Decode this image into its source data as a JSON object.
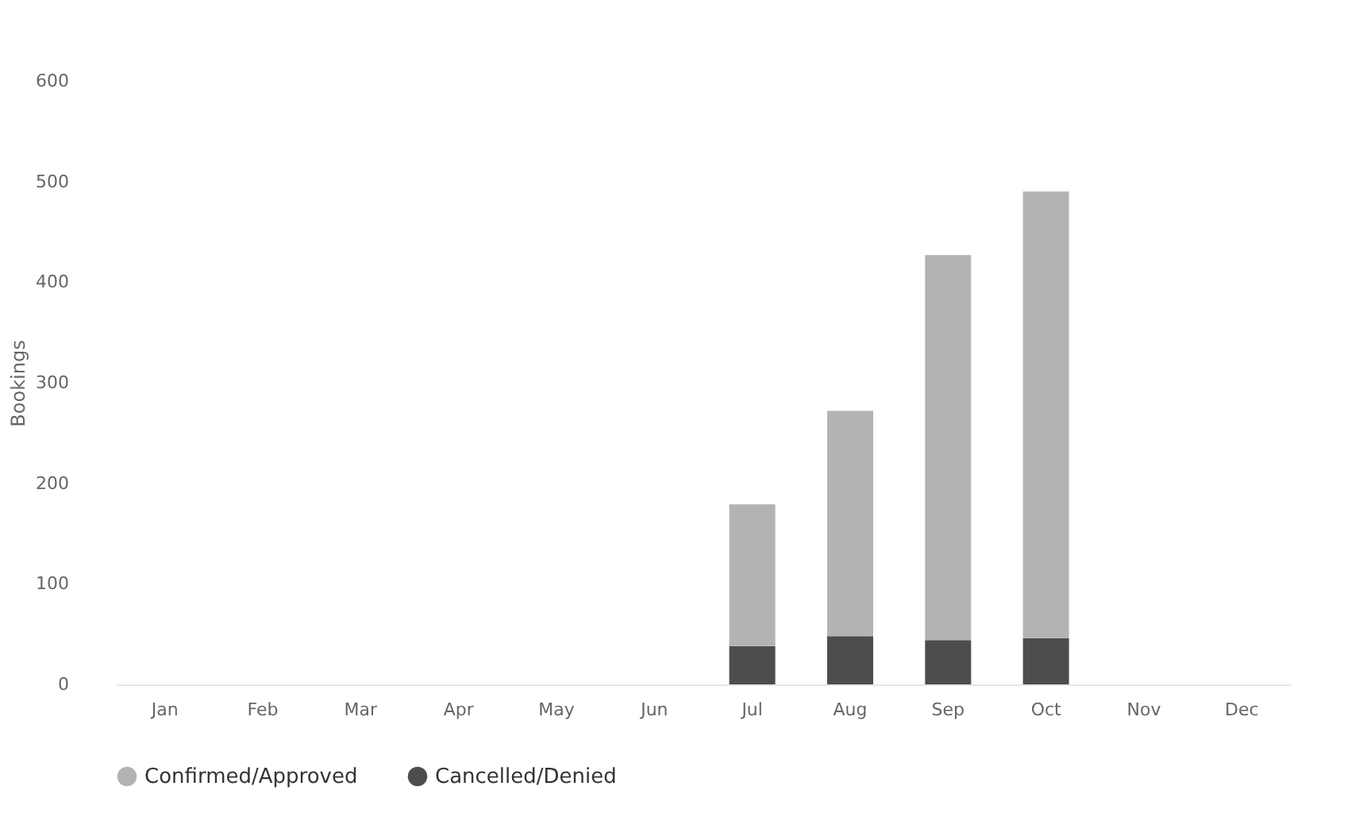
{
  "chart_data": {
    "type": "bar",
    "ylabel": "Bookings",
    "categories": [
      "Jan",
      "Feb",
      "Mar",
      "Apr",
      "May",
      "Jun",
      "Jul",
      "Aug",
      "Sep",
      "Oct",
      "Nov",
      "Dec"
    ],
    "series": [
      {
        "name": "Cancelled/Denied",
        "color": "#4d4d4d",
        "values": [
          0,
          0,
          0,
          0,
          0,
          0,
          38,
          48,
          44,
          46,
          0,
          0
        ]
      },
      {
        "name": "Confirmed/Approved",
        "color": "#b3b3b3",
        "values": [
          0,
          0,
          0,
          0,
          0,
          0,
          141,
          224,
          383,
          444,
          0,
          0
        ]
      }
    ],
    "stacked": true,
    "ylim": [
      0,
      600
    ],
    "yticks": [
      0,
      100,
      200,
      300,
      400,
      500,
      600
    ],
    "grid": false,
    "legend": "bottom"
  }
}
